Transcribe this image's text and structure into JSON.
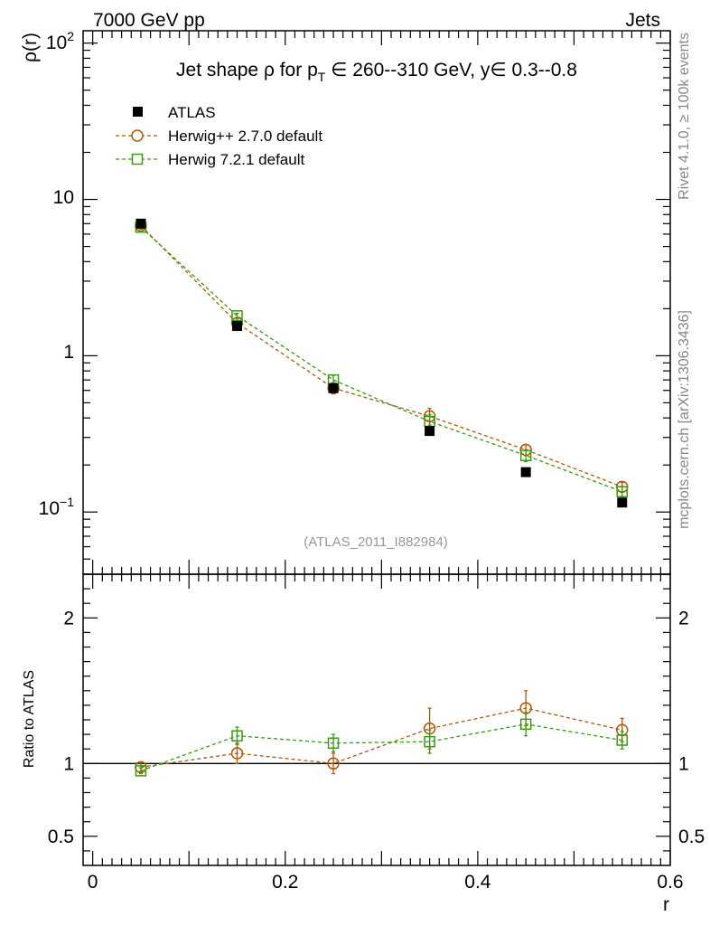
{
  "header": {
    "left": "7000 GeV pp",
    "right": "Jets",
    "side_top": "Rivet 4.1.0, ≥ 100k events",
    "side_bottom": "mcplots.cern.ch [arXiv:1306.3436]"
  },
  "colors": {
    "data": "#000000",
    "herwigpp": "#b35806",
    "herwig7": "#3a9a10",
    "watermark": "#999999",
    "side_text": "#888888"
  },
  "chart_data": [
    {
      "type": "line",
      "title": "Jet shape ρ for p_T ∈ 260--310 GeV, y∈ 0.3--0.8",
      "title_parts": {
        "main": "Jet shape ρ for p",
        "sub": "T",
        "rest": " ∈ 260--310 GeV, y∈ 0.3--0.8"
      },
      "ylabel": "ρ(r)",
      "yscale": "log",
      "ylim": [
        0.04,
        120
      ],
      "xlim": [
        -0.01,
        0.6
      ],
      "ytick_labels": {
        "y100": "10",
        "y100_exp": "2",
        "y10": "10",
        "y1": "1",
        "y01": "10",
        "y01_exp": "−1"
      },
      "watermark": "(ATLAS_2011_I882984)",
      "legend_position": "top-left",
      "x": [
        0.05,
        0.15,
        0.25,
        0.35,
        0.45,
        0.55
      ],
      "series": [
        {
          "name": "ATLAS",
          "marker": "filled-square",
          "values": [
            7.0,
            1.55,
            0.62,
            0.33,
            0.18,
            0.115
          ],
          "err": [
            0.25,
            0.06,
            0.03,
            0.015,
            0.01,
            0.006
          ]
        },
        {
          "name": "Herwig++ 2.7.0 default",
          "marker": "open-circle",
          "dashed": true,
          "values": [
            6.8,
            1.62,
            0.62,
            0.41,
            0.25,
            0.145
          ],
          "err": [
            0.2,
            0.07,
            0.05,
            0.05,
            0.02,
            0.01
          ]
        },
        {
          "name": "Herwig 7.2.1 default",
          "marker": "open-square",
          "dashed": true,
          "values": [
            6.65,
            1.8,
            0.7,
            0.38,
            0.23,
            0.135
          ],
          "err": [
            0.2,
            0.07,
            0.05,
            0.04,
            0.02,
            0.01
          ]
        }
      ]
    },
    {
      "type": "line",
      "title": "",
      "xlabel": "r",
      "ylabel": "Ratio to ATLAS",
      "ylim": [
        0.3,
        2.3
      ],
      "xlim": [
        -0.01,
        0.6
      ],
      "yticks": [
        0.5,
        1,
        2
      ],
      "ytick_labels": [
        "0.5",
        "1",
        "2"
      ],
      "xticks": [
        0,
        0.2,
        0.4,
        0.6
      ],
      "xtick_labels": [
        "0",
        "0.2",
        "0.4",
        "0.6"
      ],
      "reference": 1,
      "x": [
        0.05,
        0.15,
        0.25,
        0.35,
        0.45,
        0.55
      ],
      "series": [
        {
          "name": "Herwig++ 2.7.0 default",
          "values": [
            0.975,
            1.07,
            1.0,
            1.24,
            1.38,
            1.23
          ],
          "err": [
            0.03,
            0.07,
            0.07,
            0.14,
            0.12,
            0.08
          ]
        },
        {
          "name": "Herwig 7.2.1 default",
          "values": [
            0.95,
            1.19,
            1.14,
            1.15,
            1.27,
            1.16
          ],
          "err": [
            0.02,
            0.06,
            0.06,
            0.08,
            0.08,
            0.06
          ]
        }
      ]
    }
  ]
}
